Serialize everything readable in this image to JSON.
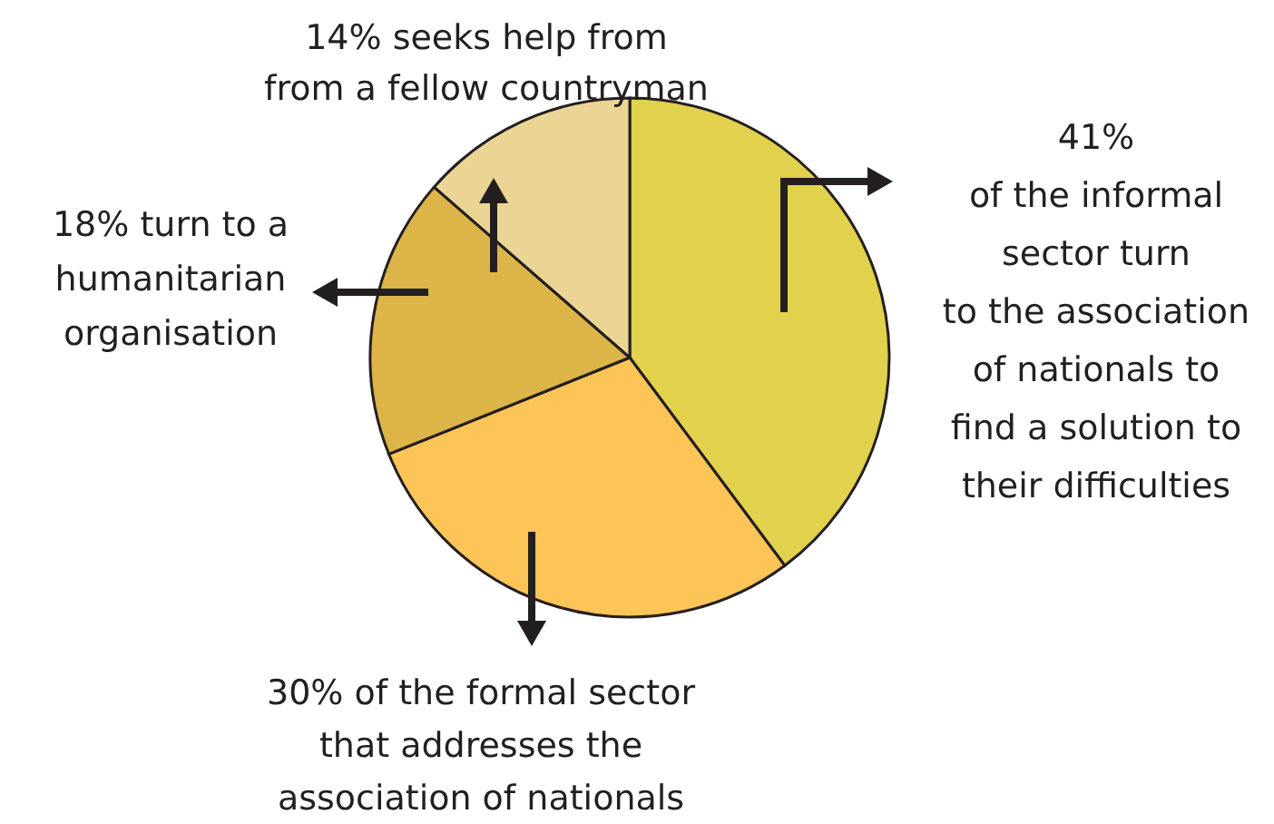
{
  "chart_data": {
    "type": "pie",
    "categories": [
      "41% of the informal sector turn to the association of nationals to find a solution to their difficulties",
      "30% of the formal sector that addresses the association of nationals",
      "18% turn to a humanitarian organisation",
      "14% seeks help from from a fellow countryman"
    ],
    "values": [
      41,
      30,
      18,
      14
    ],
    "colors": [
      "#e2d14c",
      "#fdc457",
      "#dcb448",
      "#ebd594"
    ]
  }
}
